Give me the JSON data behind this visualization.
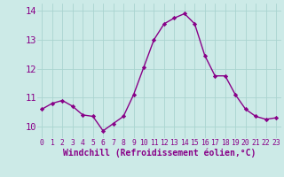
{
  "x": [
    0,
    1,
    2,
    3,
    4,
    5,
    6,
    7,
    8,
    9,
    10,
    11,
    12,
    13,
    14,
    15,
    16,
    17,
    18,
    19,
    20,
    21,
    22,
    23
  ],
  "y": [
    10.6,
    10.8,
    10.9,
    10.7,
    10.4,
    10.35,
    9.85,
    10.1,
    10.35,
    11.1,
    12.05,
    13.0,
    13.55,
    13.75,
    13.9,
    13.55,
    12.45,
    11.75,
    11.75,
    11.1,
    10.6,
    10.35,
    10.25,
    10.3
  ],
  "line_color": "#880088",
  "marker": "D",
  "marker_size": 2.2,
  "bg_color": "#cceae7",
  "grid_color": "#aad4d0",
  "xlabel": "Windchill (Refroidissement éolien,°C)",
  "ylim": [
    9.6,
    14.25
  ],
  "xlim": [
    -0.5,
    23.5
  ],
  "yticks": [
    10,
    11,
    12,
    13,
    14
  ],
  "xticks": [
    0,
    1,
    2,
    3,
    4,
    5,
    6,
    7,
    8,
    9,
    10,
    11,
    12,
    13,
    14,
    15,
    16,
    17,
    18,
    19,
    20,
    21,
    22,
    23
  ],
  "tick_label_color": "#880088",
  "xlabel_color": "#880088",
  "xlabel_fontsize": 7.0,
  "ytick_fontsize": 7.5,
  "xtick_fontsize": 5.8,
  "linewidth": 1.0
}
